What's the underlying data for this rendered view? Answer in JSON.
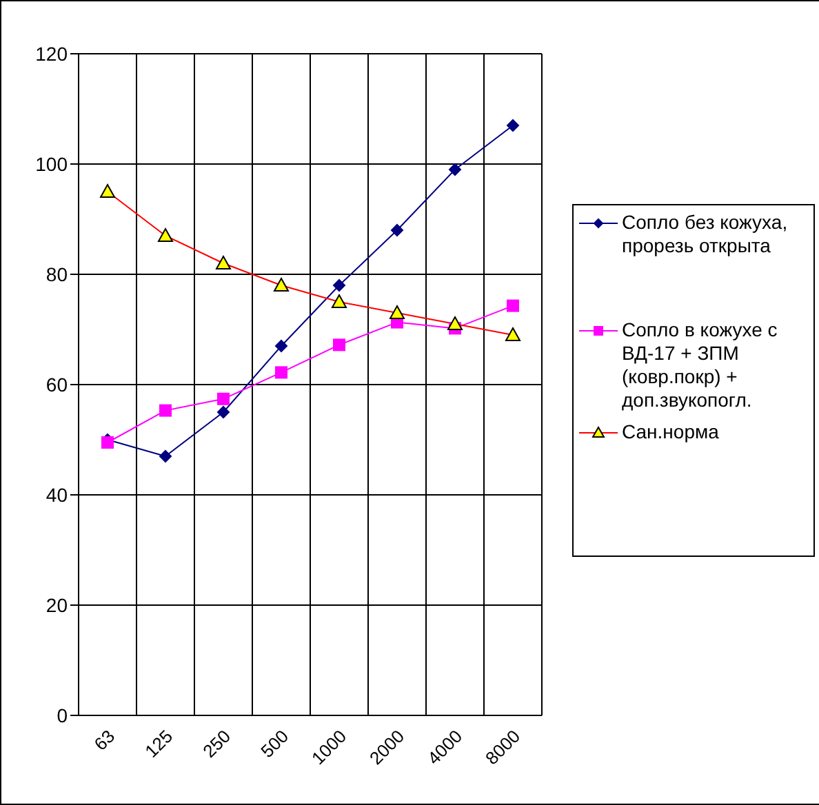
{
  "chart_data": {
    "type": "line",
    "categories": [
      "63",
      "125",
      "250",
      "500",
      "1000",
      "2000",
      "4000",
      "8000"
    ],
    "series": [
      {
        "name": "Сопло без кожуха, прорезь открыта",
        "color": "#000080",
        "marker": "diamond",
        "values": [
          50,
          47,
          55,
          67,
          78,
          88,
          99,
          107
        ]
      },
      {
        "name": "Сопло в кожухе с ВД-17 + ЗПМ (ковр.покр) + доп.звукопогл.",
        "color": "#ff00ff",
        "marker": "square",
        "values": [
          49.5,
          55.3,
          57.4,
          62.2,
          67.2,
          71.3,
          70.2,
          74.3
        ]
      },
      {
        "name": "Сан.норма",
        "color": "#ff0000",
        "marker": "triangle",
        "values": [
          95,
          87,
          82,
          78,
          75,
          73,
          71,
          69
        ]
      }
    ],
    "ylim": [
      0,
      120
    ],
    "yticks": [
      0,
      20,
      40,
      60,
      80,
      100,
      120
    ],
    "grid": true,
    "legend": "right"
  }
}
